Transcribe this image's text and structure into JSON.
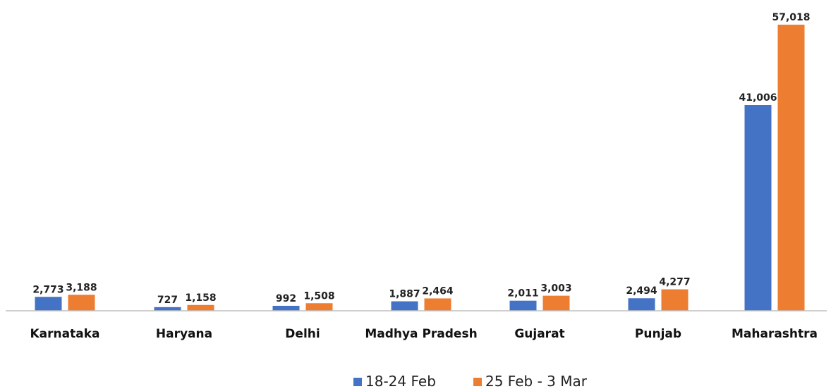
{
  "chart_data": {
    "type": "bar",
    "title": "",
    "xlabel": "",
    "ylabel": "",
    "categories": [
      "Karnataka",
      "Haryana",
      "Delhi",
      "Madhya Pradesh",
      "Gujarat",
      "Punjab",
      "Maharashtra"
    ],
    "series": [
      {
        "name": "18-24 Feb",
        "color": "#4472C4",
        "values": [
          2773,
          727,
          992,
          1887,
          2011,
          2494,
          41006
        ],
        "labels": [
          "2,773",
          "727",
          "992",
          "1,887",
          "2,011",
          "2,494",
          "41,006"
        ]
      },
      {
        "name": "25 Feb - 3 Mar",
        "color": "#ED7D31",
        "values": [
          3188,
          1158,
          1508,
          2464,
          3003,
          4277,
          57018
        ],
        "labels": [
          "3,188",
          "1,158",
          "1,508",
          "2,464",
          "3,003",
          "4,277",
          "57,018"
        ]
      }
    ],
    "ylim": [
      0,
      57018
    ],
    "grid": false,
    "legend_position": "bottom"
  }
}
